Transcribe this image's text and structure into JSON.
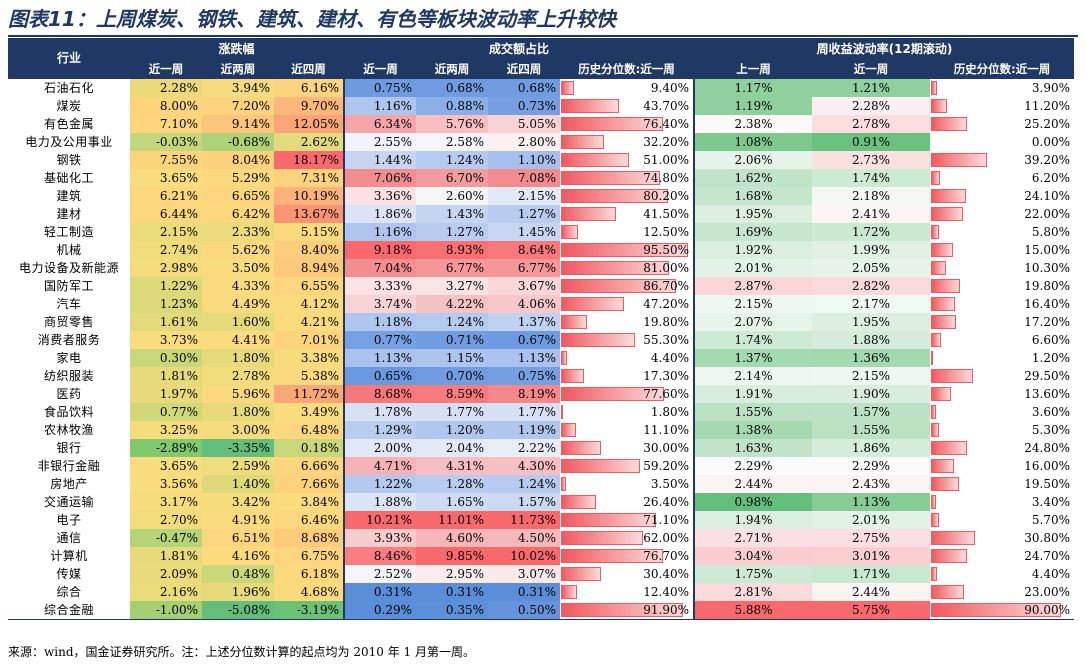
{
  "title": "图表11：上周煤炭、钢铁、建筑、建材、有色等板块波动率上升较快",
  "header": {
    "industry": "行业",
    "group_change": "涨跌幅",
    "group_turnover": "成交额占比",
    "group_vol": "周收益波动率(12期滚动)",
    "sub_change": [
      "近一周",
      "近两周",
      "近四周"
    ],
    "sub_turnover": [
      "近一周",
      "近两周",
      "近四周",
      "历史分位数:近一周"
    ],
    "sub_vol": [
      "上一周",
      "近一周",
      "历史分位数:近一周"
    ]
  },
  "rows": [
    {
      "name": "石油石化",
      "chg": [
        "2.28%",
        "3.94%",
        "6.16%"
      ],
      "chg_colors": [
        "#ecda7a",
        "#f6dc7e",
        "#fcd47d"
      ],
      "to": [
        "0.75%",
        "0.68%",
        "0.68%"
      ],
      "to_colors": [
        "#6d9be0",
        "#6f9ce0",
        "#709de0"
      ],
      "to_pct": "9.40%",
      "to_pct_v": 0.094,
      "vol": [
        "1.17%",
        "1.21%"
      ],
      "vol_colors": [
        "#8fd19e",
        "#8fd19e"
      ],
      "vol_pct": "3.90%",
      "vol_pct_v": 0.039
    },
    {
      "name": "煤炭",
      "chg": [
        "8.00%",
        "7.20%",
        "9.70%"
      ],
      "chg_colors": [
        "#fcd47c",
        "#fcd47d",
        "#fbb87a"
      ],
      "to": [
        "1.16%",
        "0.88%",
        "0.73%"
      ],
      "to_colors": [
        "#aec5ee",
        "#8aaee6",
        "#759fe1"
      ],
      "to_pct": "43.70%",
      "to_pct_v": 0.437,
      "vol": [
        "1.19%",
        "2.28%"
      ],
      "vol_colors": [
        "#8fd19e",
        "#fbeef0"
      ],
      "vol_pct": "11.20%",
      "vol_pct_v": 0.112
    },
    {
      "name": "有色金属",
      "chg": [
        "7.10%",
        "9.14%",
        "12.05%"
      ],
      "chg_colors": [
        "#fcd57d",
        "#fbc67b",
        "#f9a577"
      ],
      "to": [
        "6.34%",
        "5.76%",
        "5.05%"
      ],
      "to_colors": [
        "#f5a5a8",
        "#f8bec0",
        "#fbd3d5"
      ],
      "to_pct": "76.40%",
      "to_pct_v": 0.764,
      "vol": [
        "2.38%",
        "2.78%"
      ],
      "vol_colors": [
        "#fbf8f8",
        "#fbdde0"
      ],
      "vol_pct": "25.20%",
      "vol_pct_v": 0.252
    },
    {
      "name": "电力及公用事业",
      "chg": [
        "-0.03%",
        "-0.68%",
        "2.62%"
      ],
      "chg_colors": [
        "#c4d77a",
        "#aed276",
        "#e2da7c"
      ],
      "to": [
        "2.55%",
        "2.58%",
        "2.80%"
      ],
      "to_colors": [
        "#f3f4fb",
        "#f5f5fa",
        "#fdf0f1"
      ],
      "to_pct": "32.20%",
      "to_pct_v": 0.322,
      "vol": [
        "1.08%",
        "0.91%"
      ],
      "vol_colors": [
        "#7dc98e",
        "#6bc27f"
      ],
      "vol_pct": "0.00%",
      "vol_pct_v": 0.0
    },
    {
      "name": "钢铁",
      "chg": [
        "7.55%",
        "8.04%",
        "18.17%"
      ],
      "chg_colors": [
        "#fcd47c",
        "#fcd17c",
        "#f8696b"
      ],
      "to": [
        "1.44%",
        "1.24%",
        "1.10%"
      ],
      "to_colors": [
        "#c6d5f1",
        "#b5caef",
        "#a6bfec"
      ],
      "to_pct": "51.00%",
      "to_pct_v": 0.51,
      "vol": [
        "2.06%",
        "2.73%"
      ],
      "vol_colors": [
        "#e6f3e9",
        "#fbe0e2"
      ],
      "vol_pct": "39.20%",
      "vol_pct_v": 0.392
    },
    {
      "name": "基础化工",
      "chg": [
        "3.65%",
        "5.29%",
        "7.31%"
      ],
      "chg_colors": [
        "#f9dc7e",
        "#fcd97f",
        "#fcd37d"
      ],
      "to": [
        "7.06%",
        "6.70%",
        "7.08%"
      ],
      "to_colors": [
        "#f28c8f",
        "#f49b9e",
        "#f28b8e"
      ],
      "to_pct": "74.80%",
      "to_pct_v": 0.748,
      "vol": [
        "1.62%",
        "1.74%"
      ],
      "vol_colors": [
        "#c0e4c8",
        "#cdeaD4"
      ],
      "vol_pct": "6.20%",
      "vol_pct_v": 0.062
    },
    {
      "name": "建筑",
      "chg": [
        "6.21%",
        "6.65%",
        "10.19%"
      ],
      "chg_colors": [
        "#fcd77e",
        "#fcd57e",
        "#fbb379"
      ],
      "to": [
        "3.36%",
        "2.60%",
        "2.15%"
      ],
      "to_colors": [
        "#fbe1e3",
        "#f5f6fa",
        "#e3eaf7"
      ],
      "to_pct": "80.20%",
      "to_pct_v": 0.802,
      "vol": [
        "1.68%",
        "2.18%"
      ],
      "vol_colors": [
        "#c5e6cd",
        "#f3f8f4"
      ],
      "vol_pct": "24.10%",
      "vol_pct_v": 0.241
    },
    {
      "name": "建材",
      "chg": [
        "6.44%",
        "6.42%",
        "13.67%"
      ],
      "chg_colors": [
        "#fcd77e",
        "#fcd77e",
        "#f99574"
      ],
      "to": [
        "1.86%",
        "1.43%",
        "1.27%"
      ],
      "to_colors": [
        "#dbe4f5",
        "#c5d5f1",
        "#b8ccef"
      ],
      "to_pct": "41.50%",
      "to_pct_v": 0.415,
      "vol": [
        "1.95%",
        "2.41%"
      ],
      "vol_colors": [
        "#dcefe0",
        "#fbf5f6"
      ],
      "vol_pct": "22.00%",
      "vol_pct_v": 0.22
    },
    {
      "name": "轻工制造",
      "chg": [
        "2.15%",
        "2.33%",
        "5.15%"
      ],
      "chg_colors": [
        "#eadb7b",
        "#ecdb7c",
        "#fbda7e"
      ],
      "to": [
        "1.16%",
        "1.27%",
        "1.45%"
      ],
      "to_colors": [
        "#aec5ee",
        "#b8ccef",
        "#c7d6f2"
      ],
      "to_pct": "12.50%",
      "to_pct_v": 0.125,
      "vol": [
        "1.69%",
        "1.72%"
      ],
      "vol_colors": [
        "#c6e7ce",
        "#cae9d1"
      ],
      "vol_pct": "5.80%",
      "vol_pct_v": 0.058
    },
    {
      "name": "机械",
      "chg": [
        "2.74%",
        "5.62%",
        "8.40%"
      ],
      "chg_colors": [
        "#f1dc7c",
        "#fcd87f",
        "#fccd7c"
      ],
      "to": [
        "9.18%",
        "8.93%",
        "8.64%"
      ],
      "to_colors": [
        "#f8696b",
        "#f87072",
        "#f7797b"
      ],
      "to_pct": "95.50%",
      "to_pct_v": 0.955,
      "vol": [
        "1.92%",
        "1.99%"
      ],
      "vol_colors": [
        "#daeede",
        "#e0f1e4"
      ],
      "vol_pct": "15.00%",
      "vol_pct_v": 0.15
    },
    {
      "name": "电力设备及新能源",
      "chg": [
        "2.98%",
        "3.50%",
        "8.94%"
      ],
      "chg_colors": [
        "#f4dc7d",
        "#f8dc7e",
        "#fcc97b"
      ],
      "to": [
        "7.04%",
        "6.77%",
        "6.77%"
      ],
      "to_colors": [
        "#f28d90",
        "#f39799",
        "#f39799"
      ],
      "to_pct": "81.00%",
      "to_pct_v": 0.81,
      "vol": [
        "2.01%",
        "2.05%"
      ],
      "vol_colors": [
        "#e2f2e6",
        "#e5f3e8"
      ],
      "vol_pct": "10.30%",
      "vol_pct_v": 0.103
    },
    {
      "name": "国防军工",
      "chg": [
        "1.22%",
        "4.33%",
        "6.55%"
      ],
      "chg_colors": [
        "#dcd97a",
        "#fbdb7f",
        "#fcd67e"
      ],
      "to": [
        "3.33%",
        "3.27%",
        "3.67%"
      ],
      "to_colors": [
        "#fbe2e4",
        "#fbe4e5",
        "#f9d6d8"
      ],
      "to_pct": "86.70%",
      "to_pct_v": 0.867,
      "vol": [
        "2.87%",
        "2.82%"
      ],
      "vol_colors": [
        "#fad6d8",
        "#fadadd"
      ],
      "vol_pct": "19.80%",
      "vol_pct_v": 0.198
    },
    {
      "name": "汽车",
      "chg": [
        "1.23%",
        "4.49%",
        "4.12%"
      ],
      "chg_colors": [
        "#dcd97a",
        "#fbdb7f",
        "#fbdb7e"
      ],
      "to": [
        "3.74%",
        "4.22%",
        "4.06%"
      ],
      "to_colors": [
        "#f8d3d5",
        "#f6c1c3",
        "#f7c7c9"
      ],
      "to_pct": "47.20%",
      "to_pct_v": 0.472,
      "vol": [
        "2.15%",
        "2.17%"
      ],
      "vol_colors": [
        "#eef7f0",
        "#f0f8f2"
      ],
      "vol_pct": "16.40%",
      "vol_pct_v": 0.164
    },
    {
      "name": "商贸零售",
      "chg": [
        "1.61%",
        "1.60%",
        "4.21%"
      ],
      "chg_colors": [
        "#e3da7b",
        "#e3da7b",
        "#fbdb7e"
      ],
      "to": [
        "1.18%",
        "1.24%",
        "1.37%"
      ],
      "to_colors": [
        "#afc6ee",
        "#b5caef",
        "#c0d1f1"
      ],
      "to_pct": "19.80%",
      "to_pct_v": 0.198,
      "vol": [
        "2.07%",
        "1.95%"
      ],
      "vol_colors": [
        "#e7f4ea",
        "#dcefe0"
      ],
      "vol_pct": "17.20%",
      "vol_pct_v": 0.172
    },
    {
      "name": "消费者服务",
      "chg": [
        "3.73%",
        "4.41%",
        "7.01%"
      ],
      "chg_colors": [
        "#f9dc7e",
        "#fbdb7f",
        "#fcd47d"
      ],
      "to": [
        "0.77%",
        "0.71%",
        "0.67%"
      ],
      "to_colors": [
        "#76a0e1",
        "#719de0",
        "#6d9ae0"
      ],
      "to_pct": "55.30%",
      "to_pct_v": 0.553,
      "vol": [
        "1.74%",
        "1.88%"
      ],
      "vol_colors": [
        "#cdead4",
        "#d6ecdb"
      ],
      "vol_pct": "6.60%",
      "vol_pct_v": 0.066
    },
    {
      "name": "家电",
      "chg": [
        "0.30%",
        "1.80%",
        "3.38%"
      ],
      "chg_colors": [
        "#c9d77a",
        "#e6da7b",
        "#f7dc7e"
      ],
      "to": [
        "1.13%",
        "1.15%",
        "1.13%"
      ],
      "to_colors": [
        "#aac2ed",
        "#acc4ee",
        "#aac2ed"
      ],
      "to_pct": "4.40%",
      "to_pct_v": 0.044,
      "vol": [
        "1.37%",
        "1.36%"
      ],
      "vol_colors": [
        "#a4dab0",
        "#a2d9ae"
      ],
      "vol_pct": "1.20%",
      "vol_pct_v": 0.012
    },
    {
      "name": "纺织服装",
      "chg": [
        "1.81%",
        "2.78%",
        "5.38%"
      ],
      "chg_colors": [
        "#e6da7b",
        "#f1dc7c",
        "#fcd97f"
      ],
      "to": [
        "0.65%",
        "0.70%",
        "0.75%"
      ],
      "to_colors": [
        "#6b99df",
        "#709ce0",
        "#749fe1"
      ],
      "to_pct": "17.30%",
      "to_pct_v": 0.173,
      "vol": [
        "2.14%",
        "2.15%"
      ],
      "vol_colors": [
        "#edf7f0",
        "#eef7f0"
      ],
      "vol_pct": "29.50%",
      "vol_pct_v": 0.295
    },
    {
      "name": "医药",
      "chg": [
        "1.97%",
        "5.96%",
        "11.72%"
      ],
      "chg_colors": [
        "#e8da7b",
        "#fcd87f",
        "#f9a777"
      ],
      "to": [
        "8.68%",
        "8.59%",
        "8.19%"
      ],
      "to_colors": [
        "#f7787a",
        "#f77b7e",
        "#f6878a"
      ],
      "to_pct": "77.60%",
      "to_pct_v": 0.776,
      "vol": [
        "1.91%",
        "1.90%"
      ],
      "vol_colors": [
        "#d9edde",
        "#d8eddd"
      ],
      "vol_pct": "13.60%",
      "vol_pct_v": 0.136
    },
    {
      "name": "食品饮料",
      "chg": [
        "0.77%",
        "1.80%",
        "3.49%"
      ],
      "chg_colors": [
        "#d2d879",
        "#e6da7b",
        "#f8dc7e"
      ],
      "to": [
        "1.78%",
        "1.77%",
        "1.77%"
      ],
      "to_colors": [
        "#d7e1f4",
        "#d6e0f4",
        "#d6e0f4"
      ],
      "to_pct": "1.80%",
      "to_pct_v": 0.018,
      "vol": [
        "1.55%",
        "1.57%"
      ],
      "vol_colors": [
        "#b9e1c2",
        "#bbe2c4"
      ],
      "vol_pct": "3.60%",
      "vol_pct_v": 0.036
    },
    {
      "name": "农林牧渔",
      "chg": [
        "3.25%",
        "3.00%",
        "6.48%"
      ],
      "chg_colors": [
        "#f6dc7d",
        "#f4dc7d",
        "#fcd77e"
      ],
      "to": [
        "1.29%",
        "1.20%",
        "1.19%"
      ],
      "to_colors": [
        "#b9cdef",
        "#b1c7ee",
        "#b0c6ee"
      ],
      "to_pct": "11.10%",
      "to_pct_v": 0.111,
      "vol": [
        "1.38%",
        "1.55%"
      ],
      "vol_colors": [
        "#a5dab1",
        "#b9e1c2"
      ],
      "vol_pct": "5.30%",
      "vol_pct_v": 0.053
    },
    {
      "name": "银行",
      "chg": [
        "-2.89%",
        "-3.35%",
        "0.18%"
      ],
      "chg_colors": [
        "#7fc96f",
        "#63be7b",
        "#c7d779"
      ],
      "to": [
        "2.00%",
        "2.04%",
        "2.22%"
      ],
      "to_colors": [
        "#e0e7f6",
        "#e2e9f7",
        "#e8eef8"
      ],
      "to_pct": "30.00%",
      "to_pct_v": 0.3,
      "vol": [
        "1.63%",
        "1.86%"
      ],
      "vol_colors": [
        "#c1e4c9",
        "#d4ecda"
      ],
      "vol_pct": "24.80%",
      "vol_pct_v": 0.248
    },
    {
      "name": "非银行金融",
      "chg": [
        "3.65%",
        "2.59%",
        "6.66%"
      ],
      "chg_colors": [
        "#f9dc7e",
        "#efdc7c",
        "#fcd57e"
      ],
      "to": [
        "4.71%",
        "4.31%",
        "4.30%"
      ],
      "to_colors": [
        "#f5b2b4",
        "#f7bfc1",
        "#f7bfc1"
      ],
      "to_pct": "59.20%",
      "to_pct_v": 0.592,
      "vol": [
        "2.29%",
        "2.29%"
      ],
      "vol_colors": [
        "#fbfbfc",
        "#fbfbfc"
      ],
      "vol_pct": "16.00%",
      "vol_pct_v": 0.16
    },
    {
      "name": "房地产",
      "chg": [
        "3.56%",
        "1.40%",
        "7.66%"
      ],
      "chg_colors": [
        "#f8dc7e",
        "#dfd97a",
        "#fcd27c"
      ],
      "to": [
        "1.22%",
        "1.28%",
        "1.24%"
      ],
      "to_colors": [
        "#b3c9ee",
        "#b8ccef",
        "#b5caef"
      ],
      "to_pct": "3.50%",
      "to_pct_v": 0.035,
      "vol": [
        "2.44%",
        "2.43%"
      ],
      "vol_colors": [
        "#fbf3f4",
        "#fbf3f4"
      ],
      "vol_pct": "19.50%",
      "vol_pct_v": 0.195
    },
    {
      "name": "交通运输",
      "chg": [
        "3.17%",
        "3.42%",
        "3.84%"
      ],
      "chg_colors": [
        "#f5dc7d",
        "#f7dc7e",
        "#fadc7e"
      ],
      "to": [
        "1.88%",
        "1.65%",
        "1.57%"
      ],
      "to_colors": [
        "#dbe4f5",
        "#cfdbf3",
        "#cbd8f2"
      ],
      "to_pct": "26.40%",
      "to_pct_v": 0.264,
      "vol": [
        "0.98%",
        "1.13%"
      ],
      "vol_colors": [
        "#63be7b",
        "#85cc95"
      ],
      "vol_pct": "3.40%",
      "vol_pct_v": 0.034
    },
    {
      "name": "电子",
      "chg": [
        "2.70%",
        "4.91%",
        "6.46%"
      ],
      "chg_colors": [
        "#f1dc7c",
        "#fcda7f",
        "#fcd77e"
      ],
      "to": [
        "10.21%",
        "11.01%",
        "11.73%"
      ],
      "to_colors": [
        "#f8696b",
        "#f8696b",
        "#f8696b"
      ],
      "to_pct": "71.10%",
      "to_pct_v": 0.711,
      "vol": [
        "1.94%",
        "2.01%"
      ],
      "vol_colors": [
        "#dbeedf",
        "#e2f2e6"
      ],
      "vol_pct": "5.70%",
      "vol_pct_v": 0.057
    },
    {
      "name": "通信",
      "chg": [
        "-0.47%",
        "6.51%",
        "8.68%"
      ],
      "chg_colors": [
        "#b5d377",
        "#fcd67e",
        "#fccb7b"
      ],
      "to": [
        "3.93%",
        "4.60%",
        "4.50%"
      ],
      "to_colors": [
        "#f8cccf",
        "#f6b6b8",
        "#f6b9bb"
      ],
      "to_pct": "62.00%",
      "to_pct_v": 0.62,
      "vol": [
        "2.71%",
        "2.75%"
      ],
      "vol_colors": [
        "#fbe0e3",
        "#fbdee1"
      ],
      "vol_pct": "30.80%",
      "vol_pct_v": 0.308
    },
    {
      "name": "计算机",
      "chg": [
        "1.81%",
        "4.16%",
        "6.75%"
      ],
      "chg_colors": [
        "#e6da7b",
        "#fbdb7e",
        "#fcd57e"
      ],
      "to": [
        "8.46%",
        "9.85%",
        "10.02%"
      ],
      "to_colors": [
        "#f77f81",
        "#f8696b",
        "#f8696b"
      ],
      "to_pct": "76.70%",
      "to_pct_v": 0.767,
      "vol": [
        "3.04%",
        "3.01%"
      ],
      "vol_colors": [
        "#f9cdcf",
        "#f9ced0"
      ],
      "vol_pct": "24.70%",
      "vol_pct_v": 0.247
    },
    {
      "name": "传媒",
      "chg": [
        "2.09%",
        "0.48%",
        "6.18%"
      ],
      "chg_colors": [
        "#e9da7b",
        "#cbd879",
        "#fcd77e"
      ],
      "to": [
        "2.52%",
        "2.95%",
        "3.07%"
      ],
      "to_colors": [
        "#f3f5fa",
        "#fcebed",
        "#fbe8e9"
      ],
      "to_pct": "30.40%",
      "to_pct_v": 0.304,
      "vol": [
        "1.75%",
        "1.71%"
      ],
      "vol_colors": [
        "#ceead5",
        "#c9e8d0"
      ],
      "vol_pct": "4.40%",
      "vol_pct_v": 0.044
    },
    {
      "name": "综合",
      "chg": [
        "2.16%",
        "1.96%",
        "4.68%"
      ],
      "chg_colors": [
        "#eadb7b",
        "#e8da7b",
        "#fbda7f"
      ],
      "to": [
        "0.31%",
        "0.31%",
        "0.31%"
      ],
      "to_colors": [
        "#5a8ed9",
        "#5a8ed9",
        "#5a8ed9"
      ],
      "to_pct": "12.40%",
      "to_pct_v": 0.124,
      "vol": [
        "2.81%",
        "2.44%"
      ],
      "vol_colors": [
        "#fadadd",
        "#fbf3f4"
      ],
      "vol_pct": "23.00%",
      "vol_pct_v": 0.23
    },
    {
      "name": "综合金融",
      "chg": [
        "-1.00%",
        "-5.08%",
        "-3.19%"
      ],
      "chg_colors": [
        "#a5cf74",
        "#63be7b",
        "#6bc174"
      ],
      "to": [
        "0.29%",
        "0.35%",
        "0.50%"
      ],
      "to_colors": [
        "#5a8ed9",
        "#5d90da",
        "#6594dc"
      ],
      "to_pct": "91.90%",
      "to_pct_v": 0.919,
      "vol": [
        "5.88%",
        "5.75%"
      ],
      "vol_colors": [
        "#f8696b",
        "#f8696b"
      ],
      "vol_pct": "90.00%",
      "vol_pct_v": 0.9
    }
  ],
  "footer": "来源：wind，国金证券研究所。注：上述分位数计算的起点均为 2010 年 1 月第一周。"
}
